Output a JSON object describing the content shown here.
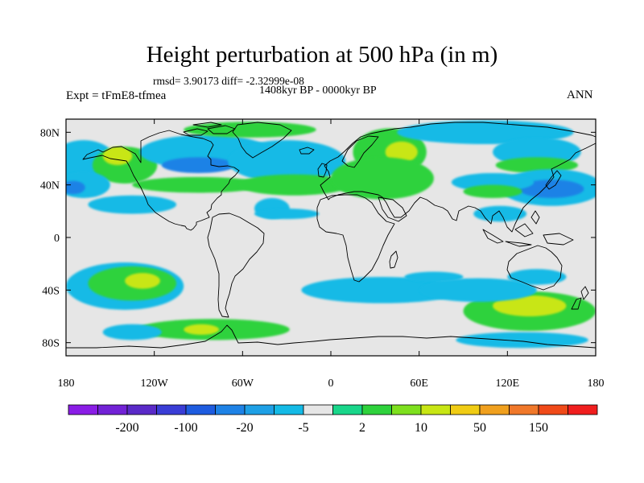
{
  "title": "Height perturbation at 500 hPa (in m)",
  "stats": "rmsd= 3.90173 diff= -2.32999e-08",
  "subtitle": "1408kyr BP - 0000kyr BP",
  "experiment": "Expt = tFmE8-tfmea",
  "season": "ANN",
  "chart_data": {
    "type": "heatmap",
    "variable": "Height perturbation at 500 hPa",
    "units": "m",
    "x_range": [
      -180,
      180
    ],
    "y_range": [
      -90,
      90
    ],
    "x_ticks": [
      {
        "value": -180,
        "label": "180"
      },
      {
        "value": -120,
        "label": "120W"
      },
      {
        "value": -60,
        "label": "60W"
      },
      {
        "value": 0,
        "label": "0"
      },
      {
        "value": 60,
        "label": "60E"
      },
      {
        "value": 120,
        "label": "120E"
      },
      {
        "value": 180,
        "label": "180"
      }
    ],
    "y_ticks": [
      {
        "value": 80,
        "label": "80N"
      },
      {
        "value": 40,
        "label": "40N"
      },
      {
        "value": 0,
        "label": "0"
      },
      {
        "value": -40,
        "label": "40S"
      },
      {
        "value": -80,
        "label": "80S"
      }
    ],
    "colorbar": {
      "colors": [
        "#8a1de6",
        "#7222d6",
        "#5a2ac8",
        "#3a3dd6",
        "#1e5ce0",
        "#1e82e6",
        "#1ea0e6",
        "#14bae6",
        "#e6e6e6",
        "#19d68a",
        "#2ed23c",
        "#7ee01e",
        "#c8e614",
        "#f0cc14",
        "#f0a01e",
        "#f0782a",
        "#f04a19",
        "#f01e1e"
      ],
      "labels": [
        {
          "after_box": 1,
          "text": "-200"
        },
        {
          "after_box": 3,
          "text": "-100"
        },
        {
          "after_box": 5,
          "text": "-20"
        },
        {
          "after_box": 7,
          "text": "-5"
        },
        {
          "after_box": 9,
          "text": "2"
        },
        {
          "after_box": 11,
          "text": "10"
        },
        {
          "after_box": 13,
          "text": "50"
        },
        {
          "after_box": 15,
          "text": "150"
        }
      ]
    },
    "anomaly_regions": [
      {
        "lon": -168,
        "lat": 58,
        "rlon": 22,
        "rlat": 16,
        "level": -3
      },
      {
        "lon": -140,
        "lat": 55,
        "rlon": 22,
        "rlat": 14,
        "level": 3
      },
      {
        "lon": -145,
        "lat": 62,
        "rlon": 10,
        "rlat": 7,
        "level": 4
      },
      {
        "lon": -168,
        "lat": 40,
        "rlon": 18,
        "rlat": 10,
        "level": -3
      },
      {
        "lon": -175,
        "lat": 38,
        "rlon": 8,
        "rlat": 5,
        "level": -4
      },
      {
        "lon": -135,
        "lat": 25,
        "rlon": 30,
        "rlat": 7,
        "level": -3
      },
      {
        "lon": -85,
        "lat": 65,
        "rlon": 45,
        "rlat": 13,
        "level": -3
      },
      {
        "lon": -55,
        "lat": 82,
        "rlon": 45,
        "rlat": 6,
        "level": 3
      },
      {
        "lon": -90,
        "lat": 40,
        "rlon": 45,
        "rlat": 6,
        "level": 3
      },
      {
        "lon": -90,
        "lat": 55,
        "rlon": 25,
        "rlat": 6,
        "level": -4
      },
      {
        "lon": -15,
        "lat": 57,
        "rlon": 22,
        "rlat": 12,
        "level": -4
      },
      {
        "lon": -30,
        "lat": 58,
        "rlon": 40,
        "rlat": 16,
        "level": -3
      },
      {
        "lon": -25,
        "lat": 40,
        "rlon": 38,
        "rlat": 8,
        "level": 3
      },
      {
        "lon": -40,
        "lat": 22,
        "rlon": 12,
        "rlat": 8,
        "level": -3
      },
      {
        "lon": -30,
        "lat": 18,
        "rlon": 22,
        "rlat": 4,
        "level": -3
      },
      {
        "lon": 40,
        "lat": 65,
        "rlon": 25,
        "rlat": 18,
        "level": 3
      },
      {
        "lon": 48,
        "lat": 65,
        "rlon": 11,
        "rlat": 8,
        "level": 4
      },
      {
        "lon": 35,
        "lat": 45,
        "rlon": 35,
        "rlat": 16,
        "level": 3
      },
      {
        "lon": 105,
        "lat": 80,
        "rlon": 60,
        "rlat": 9,
        "level": -3
      },
      {
        "lon": 140,
        "lat": 65,
        "rlon": 30,
        "rlat": 11,
        "level": -3
      },
      {
        "lon": 140,
        "lat": 55,
        "rlon": 28,
        "rlat": 6,
        "level": 3
      },
      {
        "lon": 150,
        "lat": 38,
        "rlon": 35,
        "rlat": 14,
        "level": -3
      },
      {
        "lon": 150,
        "lat": 37,
        "rlon": 22,
        "rlat": 7,
        "level": -4
      },
      {
        "lon": 110,
        "lat": 42,
        "rlon": 28,
        "rlat": 7,
        "level": -3
      },
      {
        "lon": 110,
        "lat": 35,
        "rlon": 20,
        "rlat": 5,
        "level": 3
      },
      {
        "lon": 115,
        "lat": 18,
        "rlon": 18,
        "rlat": 6,
        "level": -3
      },
      {
        "lon": -140,
        "lat": -37,
        "rlon": 40,
        "rlat": 18,
        "level": -3
      },
      {
        "lon": -135,
        "lat": -35,
        "rlon": 30,
        "rlat": 13,
        "level": 3
      },
      {
        "lon": -128,
        "lat": -33,
        "rlon": 12,
        "rlat": 6,
        "level": 4
      },
      {
        "lon": -80,
        "lat": -70,
        "rlon": 52,
        "rlat": 8,
        "level": 3
      },
      {
        "lon": -88,
        "lat": -70,
        "rlon": 12,
        "rlat": 4,
        "level": 4
      },
      {
        "lon": -135,
        "lat": -72,
        "rlon": 20,
        "rlat": 6,
        "level": -3
      },
      {
        "lon": 35,
        "lat": -40,
        "rlon": 55,
        "rlat": 10,
        "level": -3
      },
      {
        "lon": 70,
        "lat": -30,
        "rlon": 20,
        "rlat": 4,
        "level": -3
      },
      {
        "lon": 135,
        "lat": -56,
        "rlon": 45,
        "rlat": 15,
        "level": 3
      },
      {
        "lon": 135,
        "lat": -52,
        "rlon": 25,
        "rlat": 8,
        "level": 4
      },
      {
        "lon": 130,
        "lat": -78,
        "rlon": 45,
        "rlat": 6,
        "level": -3
      },
      {
        "lon": 100,
        "lat": -40,
        "rlon": 40,
        "rlat": 9,
        "level": -3
      },
      {
        "lon": 140,
        "lat": -30,
        "rlon": 20,
        "rlat": 6,
        "level": -3
      }
    ]
  }
}
